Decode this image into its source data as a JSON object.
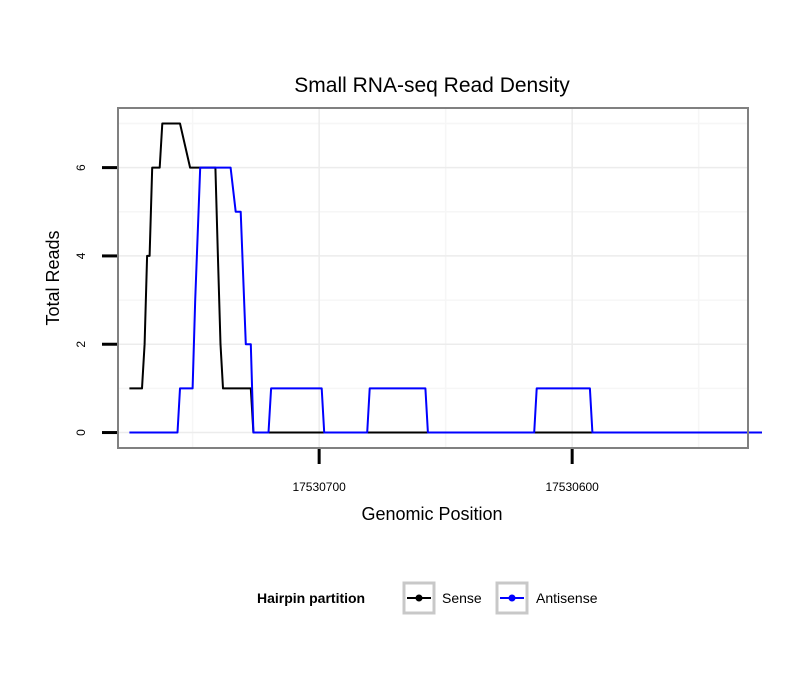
{
  "chart_data": {
    "type": "line",
    "title": "Small RNA-seq Read Density",
    "xlabel": "Genomic Position",
    "ylabel": "Total Reads",
    "x_reversed": true,
    "xlim": [
      17530779.5,
      17530530.5
    ],
    "ylim": [
      -0.35,
      7.35
    ],
    "x_ticks": [
      17530700,
      17530600
    ],
    "x_tick_labels": [
      "17530700",
      "17530600"
    ],
    "y_ticks": [
      0,
      2,
      4,
      6
    ],
    "y_tick_labels": [
      "0",
      "2",
      "4",
      "6"
    ],
    "grid": true,
    "legend": {
      "title": "Hairpin partition",
      "position": "bottom",
      "entries": [
        "Sense",
        "Antisense"
      ]
    },
    "series": [
      {
        "name": "Sense",
        "color": "#000000",
        "x": [
          17530775,
          17530770,
          17530769,
          17530768,
          17530767,
          17530766,
          17530763,
          17530762,
          17530760,
          17530755,
          17530751,
          17530745,
          17530741,
          17530740,
          17530739,
          17530738,
          17530736,
          17530735,
          17530731,
          17530727,
          17530726,
          17530525
        ],
        "y": [
          1,
          1,
          2,
          4,
          4,
          6,
          6,
          7,
          7,
          7,
          6,
          6,
          6,
          4,
          2,
          1,
          1,
          1,
          1,
          1,
          0,
          0
        ]
      },
      {
        "name": "Antisense",
        "color": "#0000ff",
        "x": [
          17530775,
          17530756,
          17530755,
          17530750,
          17530749,
          17530747,
          17530735,
          17530733,
          17530731,
          17530729,
          17530727,
          17530726,
          17530723,
          17530722,
          17530720,
          17530719,
          17530718,
          17530699,
          17530698,
          17530681,
          17530680,
          17530658,
          17530657,
          17530615,
          17530614,
          17530593,
          17530592,
          17530525
        ],
        "y": [
          0,
          0,
          1,
          1,
          3,
          6,
          6,
          5,
          5,
          2,
          2,
          0,
          0,
          0,
          0,
          1,
          1,
          1,
          0,
          0,
          1,
          1,
          0,
          0,
          1,
          1,
          0,
          0
        ]
      }
    ]
  }
}
